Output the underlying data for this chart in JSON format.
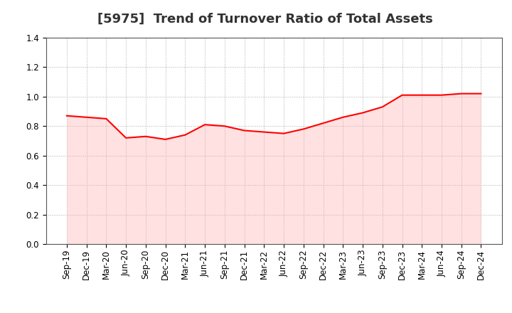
{
  "title": "[5975]  Trend of Turnover Ratio of Total Assets",
  "labels": [
    "Sep-19",
    "Dec-19",
    "Mar-20",
    "Jun-20",
    "Sep-20",
    "Dec-20",
    "Mar-21",
    "Jun-21",
    "Sep-21",
    "Dec-21",
    "Mar-22",
    "Jun-22",
    "Sep-22",
    "Dec-22",
    "Mar-23",
    "Jun-23",
    "Sep-23",
    "Dec-23",
    "Mar-24",
    "Jun-24",
    "Sep-24",
    "Dec-24"
  ],
  "values": [
    0.87,
    0.86,
    0.85,
    0.72,
    0.73,
    0.71,
    0.74,
    0.81,
    0.8,
    0.77,
    0.76,
    0.75,
    0.78,
    0.82,
    0.86,
    0.89,
    0.93,
    1.01,
    1.01,
    1.01,
    1.02,
    1.02
  ],
  "line_color": "#FF0000",
  "fill_color": "#FFAAAA",
  "fill_alpha": 0.35,
  "ylim": [
    0.0,
    1.4
  ],
  "yticks": [
    0.0,
    0.2,
    0.4,
    0.6,
    0.8,
    1.0,
    1.2,
    1.4
  ],
  "background_color": "#FFFFFF",
  "grid_color": "#999999",
  "title_fontsize": 13,
  "tick_fontsize": 8.5,
  "title_color": "#333333"
}
